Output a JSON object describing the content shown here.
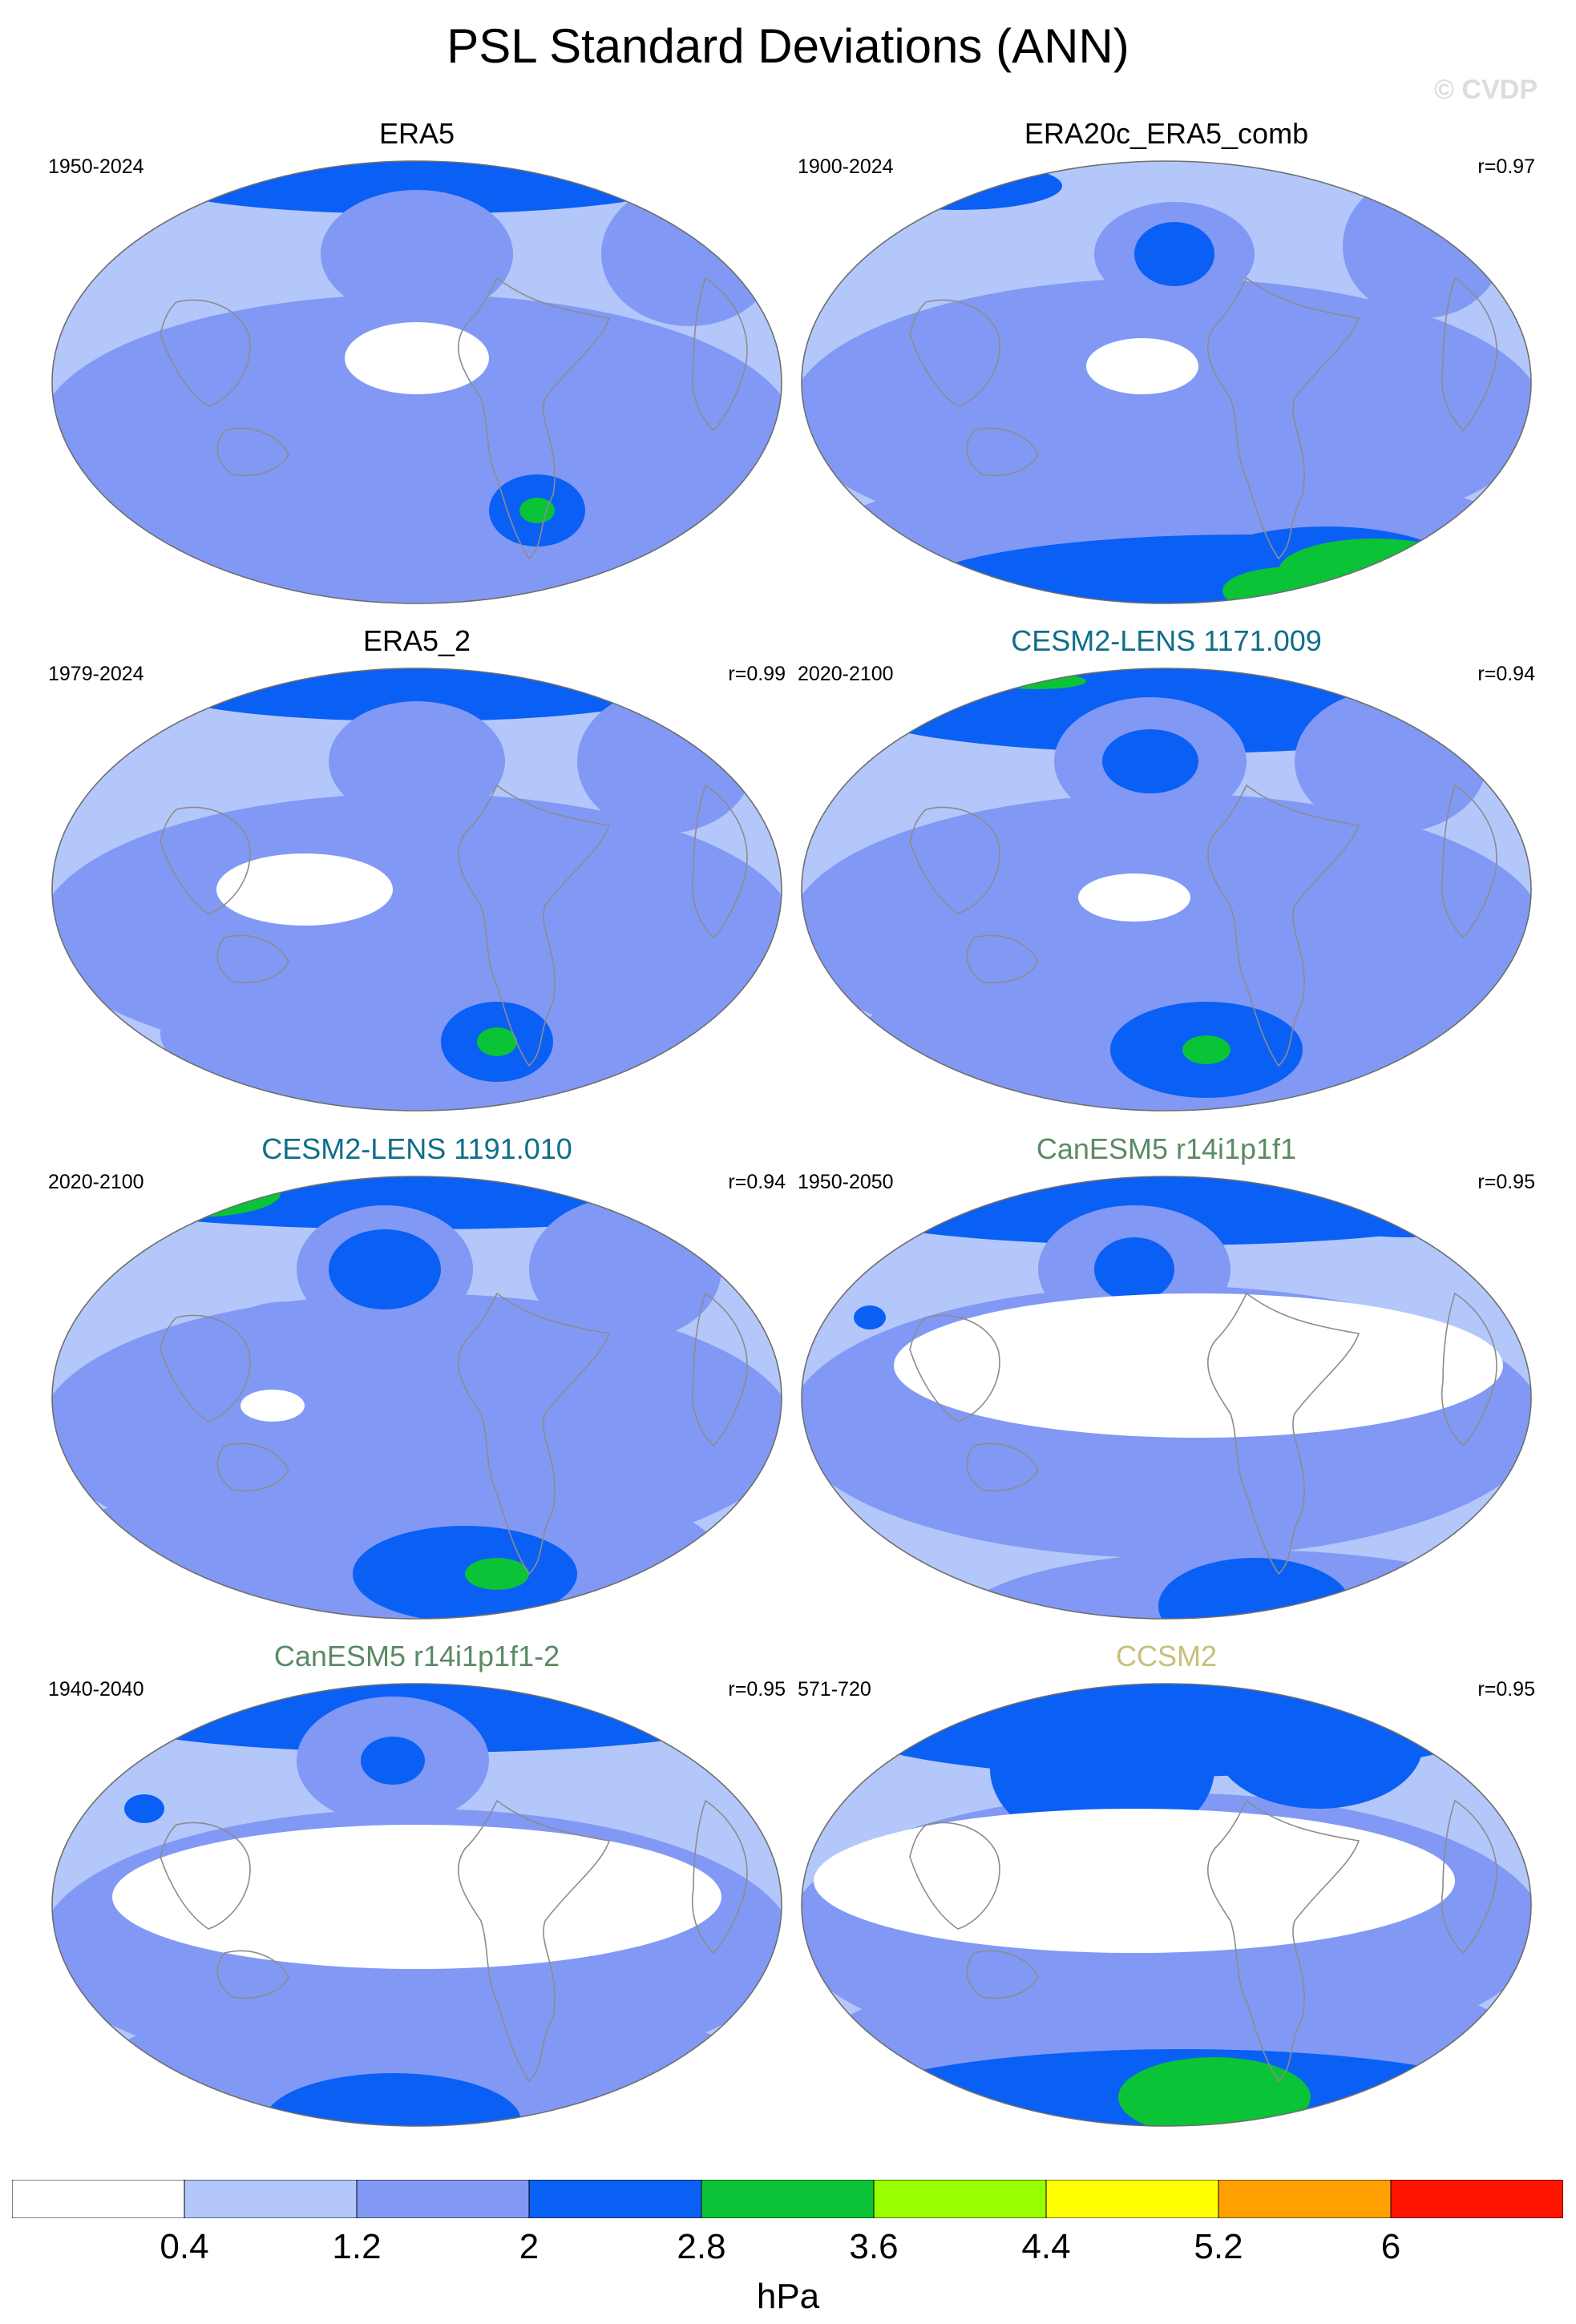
{
  "title": "PSL Standard Deviations (ANN)",
  "watermark": "© CVDP",
  "colors": {
    "levels": [
      "#ffffff",
      "#b4c7fa",
      "#8199f5",
      "#0a5ff5",
      "#0ac337",
      "#97ff00",
      "#ffff00",
      "#ffa000",
      "#ff1400"
    ],
    "land_outline": "#8c8c8c",
    "map_border": "#6e6e6e"
  },
  "panels": [
    {
      "title": "ERA5",
      "title_color": "#000000",
      "period": "1950-2024",
      "corr": ""
    },
    {
      "title": "ERA20c_ERA5_comb",
      "title_color": "#000000",
      "period": "1900-2024",
      "corr": "r=0.97"
    },
    {
      "title": "ERA5_2",
      "title_color": "#000000",
      "period": "1979-2024",
      "corr": "r=0.99"
    },
    {
      "title": "CESM2-LENS 1171.009",
      "title_color": "#0f6e8a",
      "period": "2020-2100",
      "corr": "r=0.94"
    },
    {
      "title": "CESM2-LENS 1191.010",
      "title_color": "#0f6e8a",
      "period": "2020-2100",
      "corr": "r=0.94"
    },
    {
      "title": "CanESM5 r14i1p1f1",
      "title_color": "#5b8a63",
      "period": "1950-2050",
      "corr": "r=0.95"
    },
    {
      "title": "CanESM5 r14i1p1f1-2",
      "title_color": "#5b8a63",
      "period": "1940-2040",
      "corr": "r=0.95"
    },
    {
      "title": "CCSM2",
      "title_color": "#c8c07a",
      "period": "571-720",
      "corr": "r=0.95"
    }
  ],
  "chart_data": {
    "type": "heatmap",
    "title": "PSL Standard Deviations (ANN)",
    "projection": "Robinson-like global map, Pacific-centered",
    "colorbar": {
      "unit": "hPa",
      "tick_labels": [
        "0.4",
        "1.2",
        "2",
        "2.8",
        "3.6",
        "4.4",
        "5.2",
        "6"
      ],
      "levels": [
        0.4,
        1.2,
        2,
        2.8,
        3.6,
        4.4,
        5.2,
        6
      ]
    },
    "panels": [
      {
        "name": "ERA5",
        "period": "1950-2024",
        "r": null
      },
      {
        "name": "ERA20c_ERA5_comb",
        "period": "1900-2024",
        "r": 0.97
      },
      {
        "name": "ERA5_2",
        "period": "1979-2024",
        "r": 0.99
      },
      {
        "name": "CESM2-LENS 1171.009",
        "period": "2020-2100",
        "r": 0.94
      },
      {
        "name": "CESM2-LENS 1191.010",
        "period": "2020-2100",
        "r": 0.94
      },
      {
        "name": "CanESM5 r14i1p1f1",
        "period": "1950-2050",
        "r": 0.95
      },
      {
        "name": "CanESM5 r14i1p1f1-2",
        "period": "1940-2040",
        "r": 0.95
      },
      {
        "name": "CCSM2",
        "period": "571-720",
        "r": 0.95
      }
    ]
  }
}
